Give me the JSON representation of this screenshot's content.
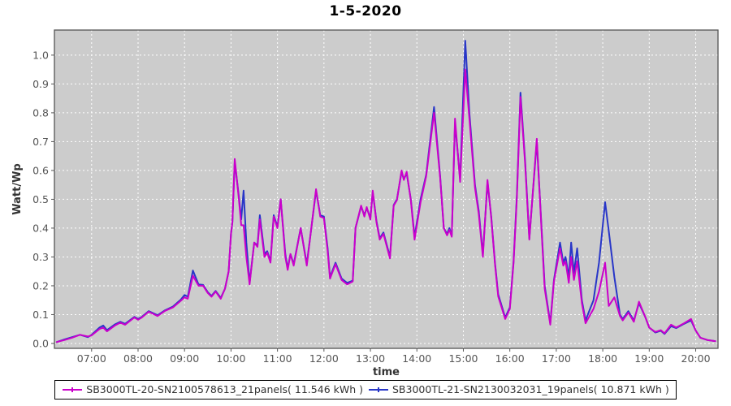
{
  "title": "1-5-2020",
  "colors": {
    "outer_background": "#ffffff",
    "plot_background": "#cccccc",
    "gridline": "#ffffff",
    "axis_line": "#555555",
    "tick_label": "#555555",
    "axis_label": "#333333",
    "title_text": "#000000",
    "legend_border": "#000000",
    "series1": "#cb00cb",
    "series2": "#2836c8"
  },
  "chart_data": {
    "type": "line",
    "title": "1-5-2020",
    "xlabel": "time",
    "ylabel": "Watt/Wp",
    "x_unit": "hour of day",
    "xlim_hours": [
      6.2,
      20.48
    ],
    "ylim": [
      -0.017,
      1.087
    ],
    "grid": true,
    "gridline_style": "dashed-white",
    "legend_position": "bottom",
    "x_ticks": [
      {
        "hour": 7,
        "label": "07:00"
      },
      {
        "hour": 8,
        "label": "08:00"
      },
      {
        "hour": 9,
        "label": "09:00"
      },
      {
        "hour": 10,
        "label": "10:00"
      },
      {
        "hour": 11,
        "label": "11:00"
      },
      {
        "hour": 12,
        "label": "12:00"
      },
      {
        "hour": 13,
        "label": "13:00"
      },
      {
        "hour": 14,
        "label": "14:00"
      },
      {
        "hour": 15,
        "label": "15:00"
      },
      {
        "hour": 16,
        "label": "16:00"
      },
      {
        "hour": 17,
        "label": "17:00"
      },
      {
        "hour": 18,
        "label": "18:00"
      },
      {
        "hour": 19,
        "label": "19:00"
      },
      {
        "hour": 20,
        "label": "20:00"
      }
    ],
    "y_ticks": [
      {
        "value": 0.0,
        "label": "0.0"
      },
      {
        "value": 0.1,
        "label": "0.1"
      },
      {
        "value": 0.2,
        "label": "0.2"
      },
      {
        "value": 0.3,
        "label": "0.3"
      },
      {
        "value": 0.4,
        "label": "0.4"
      },
      {
        "value": 0.5,
        "label": "0.5"
      },
      {
        "value": 0.6,
        "label": "0.6"
      },
      {
        "value": 0.7,
        "label": "0.7"
      },
      {
        "value": 0.8,
        "label": "0.8"
      },
      {
        "value": 0.9,
        "label": "0.9"
      },
      {
        "value": 1.0,
        "label": "1.0"
      }
    ],
    "series": [
      {
        "name": "SB3000TL-20-SN2100578613_21panels( 11.546 kWh )",
        "color": "#cb00cb",
        "daily_energy_kwh": 11.546
      },
      {
        "name": "SB3000TL-21-SN2130032031_19panels( 10.871 kWh )",
        "color": "#2836c8",
        "daily_energy_kwh": 10.871
      }
    ],
    "points_format": [
      "hour",
      "series1_watt_per_wp",
      "series2_watt_per_wp"
    ],
    "points": [
      [
        6.25,
        0.005,
        0.005
      ],
      [
        6.42,
        0.012,
        0.014
      ],
      [
        6.58,
        0.02,
        0.022
      ],
      [
        6.75,
        0.03,
        0.03
      ],
      [
        6.92,
        0.024,
        0.022
      ],
      [
        7.0,
        0.028,
        0.03
      ],
      [
        7.17,
        0.05,
        0.055
      ],
      [
        7.25,
        0.055,
        0.062
      ],
      [
        7.33,
        0.042,
        0.046
      ],
      [
        7.5,
        0.062,
        0.066
      ],
      [
        7.62,
        0.072,
        0.075
      ],
      [
        7.72,
        0.065,
        0.068
      ],
      [
        7.92,
        0.09,
        0.092
      ],
      [
        8.0,
        0.082,
        0.085
      ],
      [
        8.08,
        0.09,
        0.092
      ],
      [
        8.23,
        0.11,
        0.112
      ],
      [
        8.42,
        0.095,
        0.098
      ],
      [
        8.58,
        0.113,
        0.115
      ],
      [
        8.75,
        0.125,
        0.128
      ],
      [
        8.92,
        0.148,
        0.152
      ],
      [
        9.0,
        0.16,
        0.168
      ],
      [
        9.07,
        0.155,
        0.162
      ],
      [
        9.18,
        0.235,
        0.253
      ],
      [
        9.3,
        0.2,
        0.205
      ],
      [
        9.4,
        0.2,
        0.203
      ],
      [
        9.5,
        0.175,
        0.178
      ],
      [
        9.58,
        0.162,
        0.165
      ],
      [
        9.67,
        0.18,
        0.182
      ],
      [
        9.78,
        0.155,
        0.158
      ],
      [
        9.87,
        0.19,
        0.19
      ],
      [
        9.95,
        0.25,
        0.25
      ],
      [
        10.0,
        0.38,
        0.38
      ],
      [
        10.03,
        0.42,
        0.42
      ],
      [
        10.08,
        0.64,
        0.63
      ],
      [
        10.17,
        0.5,
        0.51
      ],
      [
        10.22,
        0.41,
        0.43
      ],
      [
        10.27,
        0.41,
        0.53
      ],
      [
        10.33,
        0.3,
        0.35
      ],
      [
        10.4,
        0.205,
        0.21
      ],
      [
        10.5,
        0.35,
        0.35
      ],
      [
        10.57,
        0.335,
        0.34
      ],
      [
        10.62,
        0.43,
        0.445
      ],
      [
        10.72,
        0.3,
        0.31
      ],
      [
        10.78,
        0.315,
        0.32
      ],
      [
        10.85,
        0.28,
        0.285
      ],
      [
        10.92,
        0.44,
        0.445
      ],
      [
        11.0,
        0.4,
        0.405
      ],
      [
        11.07,
        0.5,
        0.5
      ],
      [
        11.17,
        0.3,
        0.31
      ],
      [
        11.22,
        0.255,
        0.26
      ],
      [
        11.28,
        0.31,
        0.31
      ],
      [
        11.35,
        0.27,
        0.275
      ],
      [
        11.5,
        0.4,
        0.4
      ],
      [
        11.63,
        0.27,
        0.275
      ],
      [
        11.83,
        0.535,
        0.53
      ],
      [
        11.92,
        0.44,
        0.445
      ],
      [
        12.0,
        0.435,
        0.44
      ],
      [
        12.08,
        0.32,
        0.33
      ],
      [
        12.13,
        0.225,
        0.23
      ],
      [
        12.25,
        0.275,
        0.28
      ],
      [
        12.38,
        0.22,
        0.225
      ],
      [
        12.5,
        0.205,
        0.21
      ],
      [
        12.62,
        0.215,
        0.218
      ],
      [
        12.68,
        0.4,
        0.4
      ],
      [
        12.8,
        0.478,
        0.475
      ],
      [
        12.87,
        0.44,
        0.445
      ],
      [
        12.92,
        0.473,
        0.47
      ],
      [
        13.0,
        0.43,
        0.435
      ],
      [
        13.05,
        0.53,
        0.525
      ],
      [
        13.13,
        0.42,
        0.425
      ],
      [
        13.2,
        0.36,
        0.365
      ],
      [
        13.28,
        0.38,
        0.385
      ],
      [
        13.42,
        0.295,
        0.3
      ],
      [
        13.5,
        0.478,
        0.48
      ],
      [
        13.57,
        0.497,
        0.5
      ],
      [
        13.67,
        0.6,
        0.595
      ],
      [
        13.72,
        0.567,
        0.57
      ],
      [
        13.78,
        0.595,
        0.59
      ],
      [
        13.87,
        0.497,
        0.5
      ],
      [
        13.95,
        0.36,
        0.37
      ],
      [
        14.08,
        0.49,
        0.5
      ],
      [
        14.2,
        0.58,
        0.585
      ],
      [
        14.37,
        0.8,
        0.82
      ],
      [
        14.5,
        0.575,
        0.58
      ],
      [
        14.58,
        0.4,
        0.4
      ],
      [
        14.65,
        0.375,
        0.38
      ],
      [
        14.7,
        0.394,
        0.4
      ],
      [
        14.75,
        0.37,
        0.375
      ],
      [
        14.82,
        0.78,
        0.765
      ],
      [
        14.93,
        0.56,
        0.57
      ],
      [
        15.04,
        0.95,
        1.05
      ],
      [
        15.13,
        0.78,
        0.8
      ],
      [
        15.25,
        0.54,
        0.55
      ],
      [
        15.33,
        0.45,
        0.46
      ],
      [
        15.42,
        0.3,
        0.31
      ],
      [
        15.52,
        0.567,
        0.56
      ],
      [
        15.6,
        0.436,
        0.44
      ],
      [
        15.68,
        0.276,
        0.28
      ],
      [
        15.75,
        0.163,
        0.17
      ],
      [
        15.9,
        0.085,
        0.09
      ],
      [
        16.0,
        0.12,
        0.125
      ],
      [
        16.08,
        0.28,
        0.285
      ],
      [
        16.15,
        0.5,
        0.51
      ],
      [
        16.23,
        0.855,
        0.87
      ],
      [
        16.33,
        0.62,
        0.63
      ],
      [
        16.42,
        0.36,
        0.365
      ],
      [
        16.58,
        0.71,
        0.7
      ],
      [
        16.68,
        0.4,
        0.41
      ],
      [
        16.75,
        0.19,
        0.2
      ],
      [
        16.87,
        0.065,
        0.07
      ],
      [
        16.95,
        0.215,
        0.22
      ],
      [
        17.08,
        0.33,
        0.35
      ],
      [
        17.15,
        0.27,
        0.28
      ],
      [
        17.2,
        0.285,
        0.3
      ],
      [
        17.27,
        0.21,
        0.23
      ],
      [
        17.32,
        0.3,
        0.35
      ],
      [
        17.38,
        0.22,
        0.245
      ],
      [
        17.45,
        0.285,
        0.33
      ],
      [
        17.55,
        0.14,
        0.15
      ],
      [
        17.63,
        0.07,
        0.08
      ],
      [
        17.8,
        0.12,
        0.15
      ],
      [
        17.92,
        0.18,
        0.28
      ],
      [
        18.05,
        0.28,
        0.49
      ],
      [
        18.13,
        0.13,
        0.39
      ],
      [
        18.25,
        0.16,
        0.23
      ],
      [
        18.37,
        0.095,
        0.1
      ],
      [
        18.43,
        0.08,
        0.085
      ],
      [
        18.55,
        0.107,
        0.112
      ],
      [
        18.67,
        0.075,
        0.08
      ],
      [
        18.78,
        0.145,
        0.14
      ],
      [
        18.92,
        0.09,
        0.09
      ],
      [
        19.0,
        0.055,
        0.055
      ],
      [
        19.13,
        0.04,
        0.038
      ],
      [
        19.25,
        0.046,
        0.044
      ],
      [
        19.33,
        0.035,
        0.033
      ],
      [
        19.47,
        0.065,
        0.06
      ],
      [
        19.58,
        0.055,
        0.053
      ],
      [
        19.75,
        0.07,
        0.068
      ],
      [
        19.9,
        0.085,
        0.08
      ],
      [
        20.0,
        0.045,
        0.045
      ],
      [
        20.1,
        0.02,
        0.02
      ],
      [
        20.25,
        0.012,
        0.012
      ],
      [
        20.42,
        0.008,
        0.008
      ]
    ]
  }
}
